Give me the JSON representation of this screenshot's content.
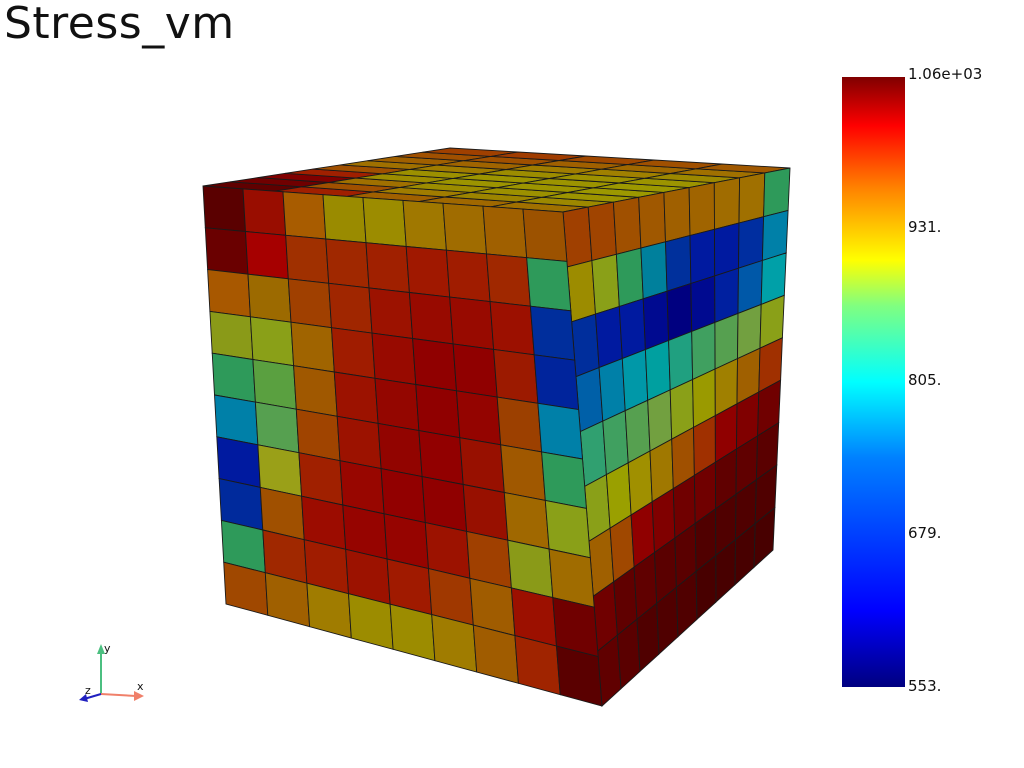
{
  "title": "Stress_vm",
  "colorbar": {
    "labels": [
      "1.06e+03",
      "931.",
      "805.",
      "679.",
      "553."
    ],
    "scale_min": 553,
    "scale_max": 1060
  },
  "axes": {
    "x_label": "x",
    "y_label": "y",
    "z_label": "z"
  },
  "colors": {
    "front_face_rows": [
      [
        "#5a0000",
        "#990d00",
        "#a85c00",
        "#9a8b00",
        "#9c8c00",
        "#a07800",
        "#a06c00",
        "#a06000",
        "#9c5200"
      ],
      [
        "#6a0000",
        "#a60000",
        "#a03000",
        "#a02800",
        "#a02000",
        "#a01800",
        "#a01c00",
        "#a02800",
        "#2e9a5a"
      ],
      [
        "#a85800",
        "#9c6a00",
        "#a04000",
        "#a02600",
        "#9c1200",
        "#980a00",
        "#980a00",
        "#9c1000",
        "#002e9c"
      ],
      [
        "#8a9a18",
        "#8aa018",
        "#a06400",
        "#a01c00",
        "#980a00",
        "#900000",
        "#900000",
        "#9c1a00",
        "#00249c"
      ],
      [
        "#2e9a5a",
        "#5aa040",
        "#a05800",
        "#9c1200",
        "#940600",
        "#900000",
        "#940400",
        "#9c4000",
        "#0080a8"
      ],
      [
        "#0080a8",
        "#56a050",
        "#a04400",
        "#9c1200",
        "#920400",
        "#920000",
        "#981000",
        "#a05800",
        "#2e9a5a"
      ],
      [
        "#001aa0",
        "#9aa018",
        "#a02000",
        "#980600",
        "#920000",
        "#900000",
        "#981000",
        "#a06800",
        "#8aa018"
      ],
      [
        "#002a9c",
        "#a05000",
        "#9c0c00",
        "#960400",
        "#960400",
        "#9c1200",
        "#a04000",
        "#8a9a18",
        "#a06c00"
      ],
      [
        "#2e9a5a",
        "#a02800",
        "#a01c00",
        "#9c1200",
        "#a01a00",
        "#a03800",
        "#a05c00",
        "#9c1000",
        "#700000"
      ],
      [
        "#a04800",
        "#a06000",
        "#a07c00",
        "#9c8c00",
        "#9c8c00",
        "#a07c00",
        "#a05c00",
        "#a02400",
        "#5a0000"
      ]
    ],
    "side_face_rows": [
      [
        "#a04000",
        "#a04400",
        "#a05000",
        "#a05800",
        "#a06000",
        "#a06400",
        "#a06c00",
        "#a07000",
        "#2e9a5a"
      ],
      [
        "#9c8c00",
        "#8aa018",
        "#2e9a5a",
        "#00809c",
        "#00309c",
        "#001aa0",
        "#001aa0",
        "#002ea0",
        "#0080a8"
      ],
      [
        "#002e9c",
        "#001aa0",
        "#001aa0",
        "#000a90",
        "#000080",
        "#000a90",
        "#0020a0",
        "#0058a8",
        "#00a0a8"
      ],
      [
        "#0060a8",
        "#0080a8",
        "#0098a8",
        "#00a0a0",
        "#20a080",
        "#40a060",
        "#56a050",
        "#72a040",
        "#8aa018"
      ],
      [
        "#30a070",
        "#40a060",
        "#56a050",
        "#72a040",
        "#8aa018",
        "#9a9a00",
        "#a08000",
        "#a06000",
        "#a03000"
      ],
      [
        "#8aa018",
        "#9aa000",
        "#a09000",
        "#a07800",
        "#a05000",
        "#a03000",
        "#900000",
        "#800000",
        "#700000"
      ],
      [
        "#a06000",
        "#a04800",
        "#900000",
        "#800000",
        "#700000",
        "#700000",
        "#600000",
        "#600000",
        "#5a0000"
      ],
      [
        "#700000",
        "#600000",
        "#600000",
        "#5a0000",
        "#5a0000",
        "#500000",
        "#500000",
        "#500000",
        "#500000"
      ],
      [
        "#600000",
        "#5a0000",
        "#500000",
        "#500000",
        "#500000",
        "#480000",
        "#480000",
        "#480000",
        "#480000"
      ]
    ],
    "top_face_rows": [
      [
        "#600000",
        "#700000",
        "#800000",
        "#a02000",
        "#a05000",
        "#a07000",
        "#a06000",
        "#a05000",
        "#a04000"
      ],
      [
        "#a02000",
        "#a05000",
        "#a07000",
        "#9c8c00",
        "#9c9000",
        "#a07c00",
        "#a06400",
        "#a05000",
        "#a03c00"
      ],
      [
        "#a06000",
        "#a07c00",
        "#9c8c00",
        "#9c9400",
        "#9c9400",
        "#9c8c00",
        "#a07c00",
        "#a06000",
        "#a04800"
      ],
      [
        "#a06800",
        "#9c8400",
        "#9c9000",
        "#9c9400",
        "#9c9400",
        "#9c9000",
        "#a08000",
        "#a06800",
        "#a05000"
      ],
      [
        "#a07000",
        "#9c8800",
        "#9c9400",
        "#9c9800",
        "#9c9800",
        "#9c9400",
        "#9c8800",
        "#a07000",
        "#a05800"
      ]
    ]
  }
}
